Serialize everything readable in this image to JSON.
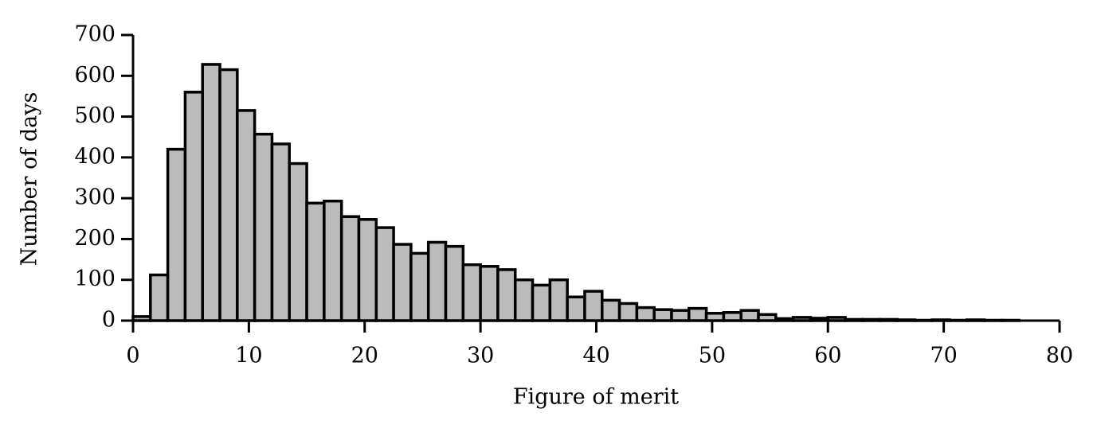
{
  "chart_data": {
    "type": "histogram",
    "xlabel": "Figure of merit",
    "ylabel": "Number of days",
    "bins": [
      0,
      1.5,
      3,
      4.5,
      6,
      7.5,
      9,
      10.5,
      12,
      13.5,
      15,
      16.5,
      18,
      19.5,
      21,
      22.5,
      24,
      25.5,
      27,
      28.5,
      30,
      31.5,
      33,
      34.5,
      36,
      37.5,
      39,
      40.5,
      42,
      43.5,
      45,
      46.5,
      48,
      49.5,
      51,
      52.5,
      54,
      55.5,
      57,
      58.5,
      60,
      61.5,
      63,
      64.5,
      66,
      67.5,
      69,
      70.5,
      72,
      73.5,
      75,
      76.5,
      78,
      79.5
    ],
    "values": [
      10,
      112,
      420,
      560,
      628,
      615,
      515,
      457,
      433,
      385,
      288,
      293,
      255,
      248,
      228,
      187,
      165,
      192,
      182,
      137,
      133,
      125,
      100,
      87,
      100,
      58,
      72,
      50,
      42,
      32,
      27,
      25,
      30,
      18,
      20,
      25,
      15,
      5,
      8,
      6,
      8,
      3,
      3,
      3,
      2,
      1,
      2,
      1,
      2,
      1,
      1,
      0,
      0
    ],
    "color": "#bbbbbb",
    "xlim": [
      0,
      80
    ],
    "xticks": [
      0,
      10,
      20,
      30,
      40,
      50,
      60,
      70,
      80
    ],
    "ylim": [
      0,
      700
    ],
    "yticks": [
      0,
      100,
      200,
      300,
      400,
      500,
      600,
      700
    ],
    "grid": false
  }
}
